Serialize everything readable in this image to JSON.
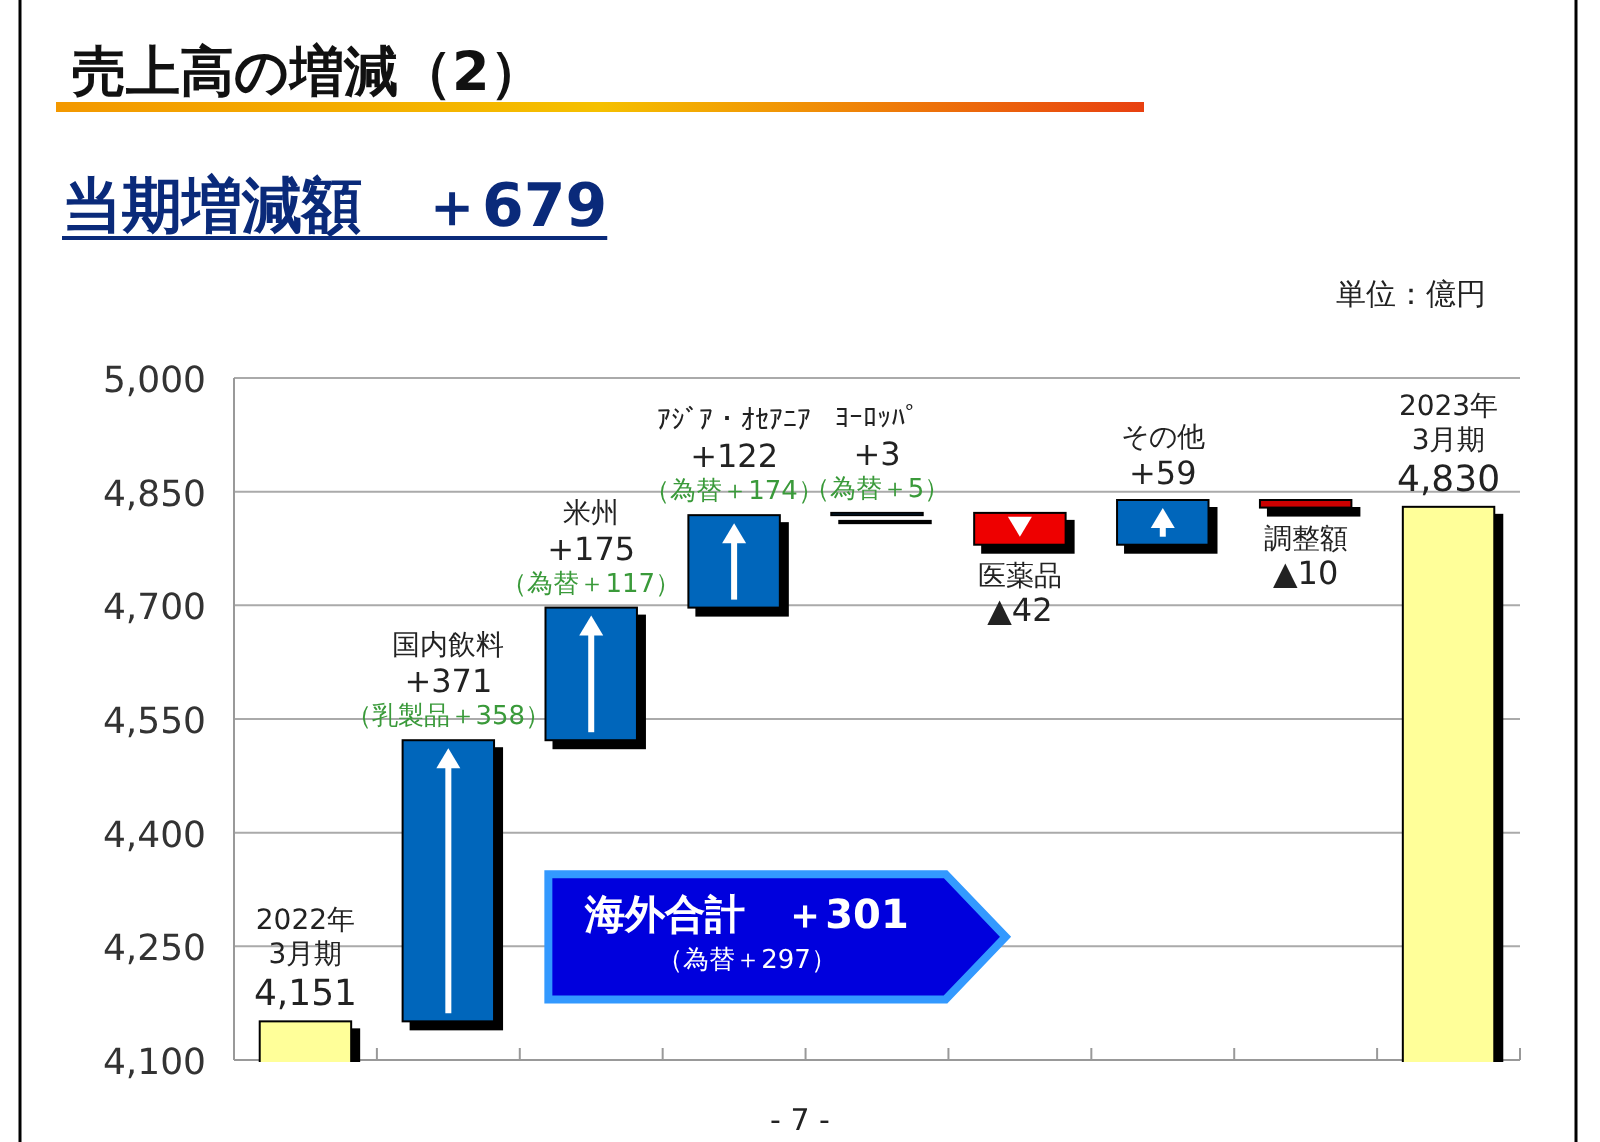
{
  "chart_data": {
    "type": "bar",
    "title": "売上高の増減（2）",
    "subtitle": "当期増減額　＋679",
    "categories": [
      "2022年\n3月期",
      "国内飲料",
      "米州",
      "ｱｼﾞｱ・ｵｾｱﾆｱ",
      "ﾖｰﾛｯﾊﾟ",
      "医薬品",
      "その他",
      "調整額",
      "2023年\n3月期"
    ],
    "values": [
      4151,
      371,
      175,
      122,
      3,
      -42,
      59,
      -10,
      4830
    ],
    "base": [
      null,
      4151,
      4522,
      4697,
      4819,
      4822,
      4780,
      4839,
      null
    ],
    "value_labels": [
      "4,151",
      "+371",
      "+175",
      "+122",
      "+3",
      "▲42",
      "+59",
      "▲10",
      "4,830"
    ],
    "colors": [
      "#ffff99",
      "#0066bb",
      "#0066bb",
      "#0066bb",
      "#0066bb",
      "#ee0000",
      "#0066bb",
      "#cc0000",
      "#ffff99"
    ],
    "ylim": [
      4100,
      5000
    ],
    "yticks": [
      {
        "value": 4100,
        "label": "4,100"
      },
      {
        "value": 4250,
        "label": "4,250"
      },
      {
        "value": 4400,
        "label": "4,400"
      },
      {
        "value": 4550,
        "label": "4,550"
      },
      {
        "value": 4700,
        "label": "4,700"
      },
      {
        "value": 4850,
        "label": "4,850"
      },
      {
        "value": 5000,
        "label": "5,000"
      }
    ],
    "grid": "y",
    "annotations": [
      {
        "text": "（乳製品＋358）",
        "x": "国内飲料",
        "y": 4522
      },
      {
        "text": "（為替＋117）",
        "x": "米州",
        "y": 4697
      },
      {
        "text": "（為替＋174）",
        "x": "ｱｼﾞｱ・ｵｾｱﾆｱ",
        "y": 4819
      },
      {
        "text": "（為替＋5）",
        "x": "ﾖｰﾛｯﾊﾟ",
        "y": 4822
      },
      "海外合計　＋301",
      "（為替＋297）",
      "単位：億円",
      "- 7 -"
    ]
  }
}
